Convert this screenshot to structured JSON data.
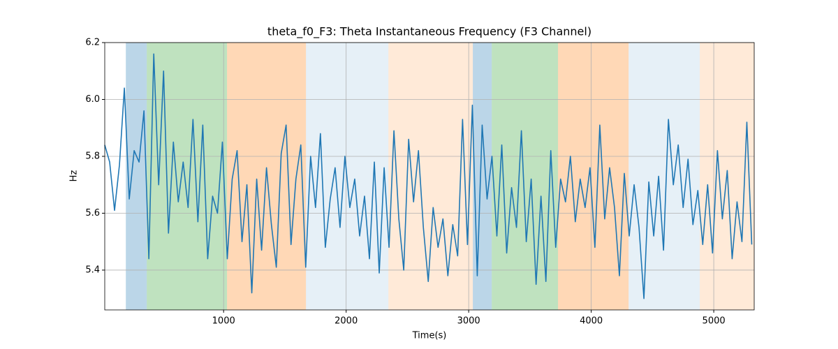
{
  "chart_data": {
    "type": "line",
    "title": "theta_f0_F3: Theta Instantaneous Frequency (F3 Channel)",
    "xlabel": "Time(s)",
    "ylabel": "Hz",
    "xlim": [
      30,
      5330
    ],
    "ylim": [
      5.26,
      6.2
    ],
    "xticks": [
      1000,
      2000,
      3000,
      4000,
      5000
    ],
    "yticks": [
      5.4,
      5.6,
      5.8,
      {
        "value": 6,
        "label": "6.0"
      },
      6.2
    ],
    "grid": true,
    "spans": [
      {
        "start": 202,
        "end": 373,
        "color": "#1f77b4",
        "alpha": 0.3
      },
      {
        "start": 373,
        "end": 1028,
        "color": "#2ca02c",
        "alpha": 0.3
      },
      {
        "start": 1028,
        "end": 1672,
        "color": "#ff7f0e",
        "alpha": 0.3
      },
      {
        "start": 1672,
        "end": 2345,
        "color": "#1f77b4",
        "alpha": 0.11
      },
      {
        "start": 2345,
        "end": 3034,
        "color": "#ff7f0e",
        "alpha": 0.16
      },
      {
        "start": 3034,
        "end": 3188,
        "color": "#1f77b4",
        "alpha": 0.3
      },
      {
        "start": 3188,
        "end": 3729,
        "color": "#2ca02c",
        "alpha": 0.3
      },
      {
        "start": 3729,
        "end": 4305,
        "color": "#ff7f0e",
        "alpha": 0.3
      },
      {
        "start": 4305,
        "end": 4886,
        "color": "#1f77b4",
        "alpha": 0.11
      },
      {
        "start": 4886,
        "end": 5330,
        "color": "#ff7f0e",
        "alpha": 0.16
      }
    ],
    "x": [
      30,
      70,
      110,
      150,
      190,
      230,
      270,
      310,
      350,
      390,
      430,
      470,
      510,
      550,
      590,
      630,
      670,
      710,
      750,
      790,
      830,
      870,
      910,
      950,
      990,
      1030,
      1070,
      1110,
      1150,
      1190,
      1230,
      1270,
      1310,
      1350,
      1390,
      1430,
      1470,
      1510,
      1550,
      1590,
      1630,
      1670,
      1710,
      1750,
      1790,
      1830,
      1870,
      1910,
      1950,
      1990,
      2030,
      2070,
      2110,
      2150,
      2190,
      2230,
      2270,
      2310,
      2350,
      2390,
      2430,
      2470,
      2510,
      2550,
      2590,
      2630,
      2670,
      2710,
      2750,
      2790,
      2830,
      2870,
      2910,
      2950,
      2990,
      3030,
      3070,
      3110,
      3150,
      3190,
      3230,
      3270,
      3310,
      3350,
      3390,
      3430,
      3470,
      3510,
      3550,
      3590,
      3630,
      3670,
      3710,
      3750,
      3790,
      3830,
      3870,
      3910,
      3950,
      3990,
      4030,
      4070,
      4110,
      4150,
      4190,
      4230,
      4270,
      4310,
      4350,
      4390,
      4430,
      4470,
      4510,
      4550,
      4590,
      4630,
      4670,
      4710,
      4750,
      4790,
      4830,
      4870,
      4910,
      4950,
      4990,
      5030,
      5070,
      5110,
      5150,
      5190,
      5230,
      5270,
      5310
    ],
    "series": [
      {
        "color": "#1f77b4",
        "values": [
          5.84,
          5.78,
          5.61,
          5.77,
          6.04,
          5.65,
          5.82,
          5.78,
          5.96,
          5.44,
          6.16,
          5.7,
          6.1,
          5.53,
          5.85,
          5.64,
          5.78,
          5.62,
          5.93,
          5.57,
          5.91,
          5.44,
          5.66,
          5.6,
          5.85,
          5.44,
          5.72,
          5.82,
          5.5,
          5.7,
          5.32,
          5.72,
          5.47,
          5.76,
          5.56,
          5.41,
          5.81,
          5.91,
          5.49,
          5.72,
          5.84,
          5.41,
          5.8,
          5.62,
          5.88,
          5.48,
          5.65,
          5.76,
          5.55,
          5.8,
          5.62,
          5.72,
          5.52,
          5.66,
          5.44,
          5.78,
          5.39,
          5.76,
          5.48,
          5.89,
          5.58,
          5.4,
          5.86,
          5.64,
          5.82,
          5.55,
          5.36,
          5.62,
          5.48,
          5.58,
          5.38,
          5.56,
          5.45,
          5.93,
          5.49,
          5.98,
          5.38,
          5.91,
          5.65,
          5.8,
          5.52,
          5.84,
          5.46,
          5.69,
          5.55,
          5.89,
          5.5,
          5.72,
          5.35,
          5.66,
          5.36,
          5.82,
          5.48,
          5.72,
          5.64,
          5.8,
          5.57,
          5.72,
          5.62,
          5.76,
          5.48,
          5.91,
          5.58,
          5.76,
          5.62,
          5.38,
          5.74,
          5.52,
          5.7,
          5.55,
          5.3,
          5.71,
          5.52,
          5.73,
          5.47,
          5.93,
          5.7,
          5.84,
          5.62,
          5.79,
          5.56,
          5.68,
          5.49,
          5.7,
          5.46,
          5.82,
          5.58,
          5.75,
          5.44,
          5.64,
          5.5,
          5.92,
          5.49
        ]
      }
    ]
  }
}
